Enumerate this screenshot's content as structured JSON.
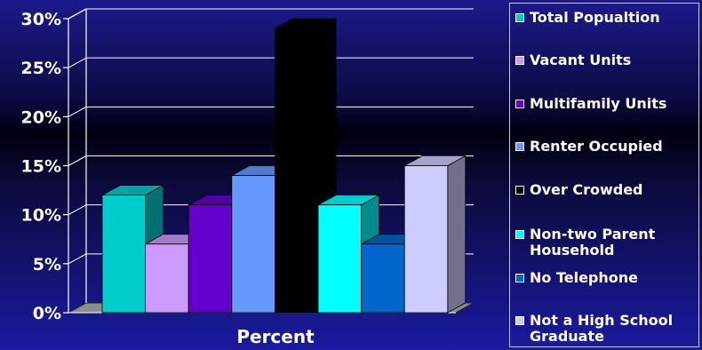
{
  "chart_data": {
    "type": "bar",
    "title": "",
    "xlabel": "Percent",
    "ylabel": "",
    "ylim": [
      0,
      30
    ],
    "yticks": [
      "0%",
      "5%",
      "10%",
      "15%",
      "20%",
      "25%",
      "30%"
    ],
    "grid": true,
    "legend_position": "right",
    "categories": [
      "Percent"
    ],
    "series": [
      {
        "name": "Total Popualtion",
        "values": [
          12
        ],
        "color": "#00cccc"
      },
      {
        "name": "Vacant Units",
        "values": [
          7
        ],
        "color": "#cc99ff"
      },
      {
        "name": "Multifamily Units",
        "values": [
          11
        ],
        "color": "#6600cc"
      },
      {
        "name": "Renter Occupied",
        "values": [
          14
        ],
        "color": "#6699ff"
      },
      {
        "name": "Over Crowded",
        "values": [
          29
        ],
        "color": "#000000"
      },
      {
        "name": "Non-two Parent Household",
        "values": [
          11
        ],
        "color": "#00ffff"
      },
      {
        "name": "No Telephone",
        "values": [
          7
        ],
        "color": "#0066cc"
      },
      {
        "name": "Not a High School Graduate",
        "values": [
          15
        ],
        "color": "#ccccff"
      }
    ]
  }
}
